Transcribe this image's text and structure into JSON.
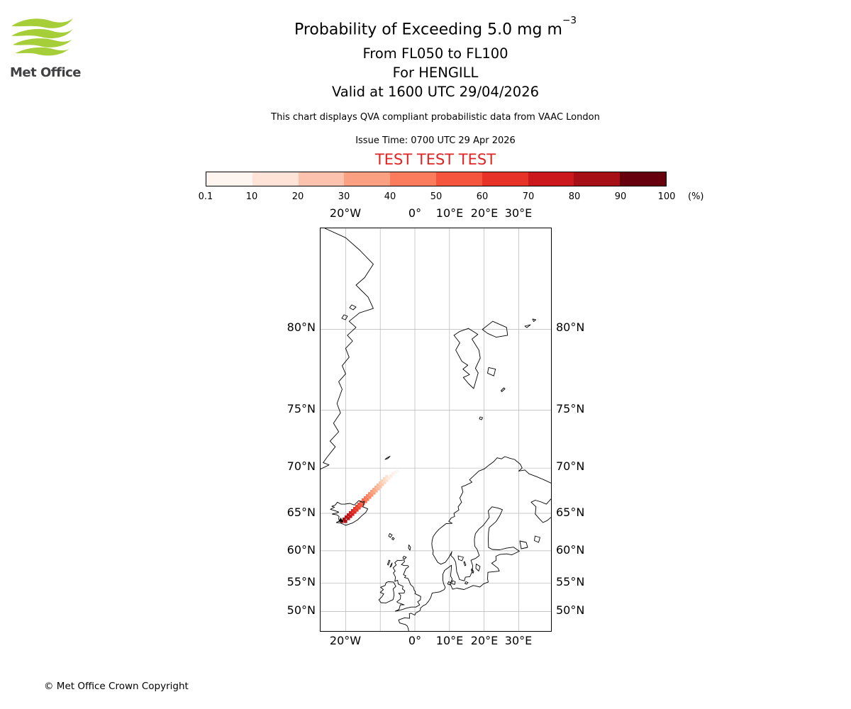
{
  "brand": {
    "name": "Met Office"
  },
  "header": {
    "title": "Probability of Exceeding 5.0 mg m",
    "title_exponent": "−3",
    "subtitle1": "From FL050 to FL100",
    "subtitle2": "For HENGILL",
    "subtitle3": "Valid at 1600 UTC 29/04/2026",
    "note": "This chart displays QVA compliant probabilistic data from VAAC London",
    "issue_time": "Issue Time: 0700 UTC 29 Apr 2026",
    "test_text": "TEST TEST TEST",
    "test_color": "#e02424"
  },
  "colorbar": {
    "tick_labels": [
      "0.1",
      "10",
      "20",
      "30",
      "40",
      "50",
      "60",
      "70",
      "80",
      "90",
      "100"
    ],
    "unit_label": "(%)",
    "colors": [
      "#fff5f0",
      "#fee3d6",
      "#fcc2ad",
      "#fca082",
      "#fb7c5c",
      "#f5553d",
      "#e73327",
      "#cb181d",
      "#a50f15",
      "#67000d"
    ]
  },
  "map": {
    "top_labels": [
      "20°W",
      "0°",
      "10°E",
      "20°E",
      "30°E"
    ],
    "bottom_labels": [
      "20°W",
      "0°",
      "10°E",
      "20°E",
      "30°E"
    ],
    "left_labels": [
      "80°N",
      "75°N",
      "70°N",
      "65°N",
      "60°N",
      "55°N",
      "50°N"
    ],
    "right_labels": [
      "80°N",
      "75°N",
      "70°N",
      "65°N",
      "60°N",
      "55°N",
      "50°N"
    ]
  },
  "plume": {
    "source_volcano": "HENGILL",
    "cells": [
      [
        28,
        411,
        "#97090f"
      ],
      [
        31,
        408,
        "#a30e14"
      ],
      [
        33,
        411,
        "#ad1016"
      ],
      [
        34,
        405,
        "#b31218"
      ],
      [
        37,
        407,
        "#bb141a"
      ],
      [
        37,
        402,
        "#c2161b"
      ],
      [
        40,
        404,
        "#c9181d"
      ],
      [
        40,
        399,
        "#cf1d1f"
      ],
      [
        43,
        401,
        "#d52321"
      ],
      [
        43,
        396,
        "#da2823"
      ],
      [
        46,
        398,
        "#df2e26"
      ],
      [
        46,
        393,
        "#e43429"
      ],
      [
        49,
        395,
        "#e83a2c"
      ],
      [
        49,
        390,
        "#ec402f"
      ],
      [
        52,
        392,
        "#ef4733"
      ],
      [
        52,
        387,
        "#f14e37"
      ],
      [
        55,
        389,
        "#f4553c"
      ],
      [
        55,
        384,
        "#f65c41"
      ],
      [
        58,
        386,
        "#f86346"
      ],
      [
        58,
        381,
        "#f96a4b"
      ],
      [
        61,
        383,
        "#fb7050"
      ],
      [
        61,
        378,
        "#fb7755"
      ],
      [
        64,
        380,
        "#fc7d5a"
      ],
      [
        64,
        375,
        "#fc8460"
      ],
      [
        67,
        377,
        "#fc8a66"
      ],
      [
        67,
        372,
        "#fc906c"
      ],
      [
        70,
        374,
        "#fc9672"
      ],
      [
        70,
        369,
        "#fc9c78"
      ],
      [
        73,
        371,
        "#fca17e"
      ],
      [
        73,
        366,
        "#fca784"
      ],
      [
        76,
        368,
        "#fcad8b"
      ],
      [
        76,
        363,
        "#fcb291"
      ],
      [
        79,
        365,
        "#fcb898"
      ],
      [
        79,
        360,
        "#fcbd9e"
      ],
      [
        82,
        362,
        "#fdc2a5"
      ],
      [
        82,
        357,
        "#fdc8ab"
      ],
      [
        85,
        359,
        "#fdcdb2"
      ],
      [
        85,
        354,
        "#fdd2b9"
      ],
      [
        88,
        356,
        "#fdd7c0"
      ],
      [
        88,
        351,
        "#fddcc7"
      ],
      [
        91,
        353,
        "#fee1ce"
      ],
      [
        91,
        348,
        "#fee5d5"
      ],
      [
        94,
        350,
        "#fee9dc"
      ],
      [
        97,
        347,
        "#feede3"
      ],
      [
        100,
        344,
        "#fef1ea"
      ],
      [
        103,
        342,
        "#fdf4ee"
      ],
      [
        106,
        340,
        "#fdf6f2"
      ]
    ]
  },
  "footer": {
    "copyright": "© Met Office Crown Copyright"
  }
}
